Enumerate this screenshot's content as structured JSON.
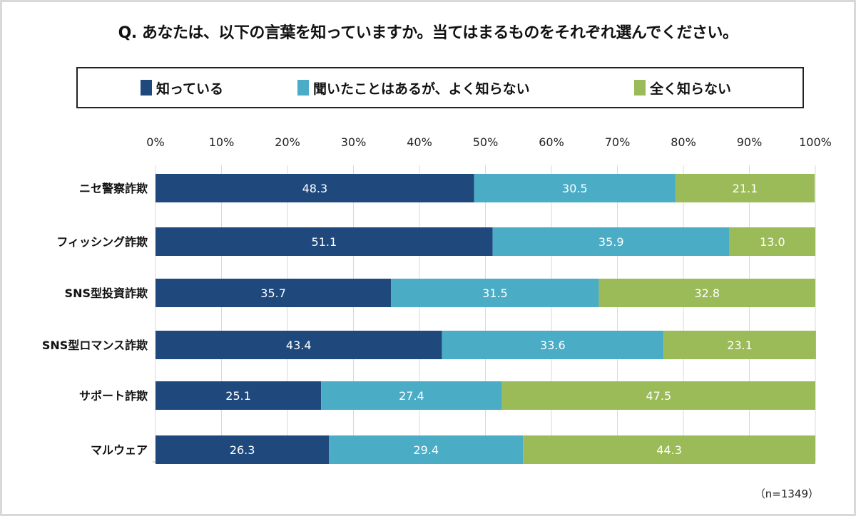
{
  "chart_data": {
    "type": "bar",
    "orientation": "horizontal",
    "stacked": true,
    "title": "Q. あなたは、以下の言葉を知っていますか。当てはまるものをそれぞれ選んでください。",
    "categories": [
      "ニセ警察詐欺",
      "フィッシング詐欺",
      "SNS型投資詐欺",
      "SNS型ロマンス詐欺",
      "サポート詐欺",
      "マルウェア"
    ],
    "series": [
      {
        "name": "知っている",
        "color": "#1f497d",
        "values": [
          48.3,
          51.1,
          35.7,
          43.4,
          25.1,
          26.3
        ]
      },
      {
        "name": "聞いたことはあるが、よく知らない",
        "color": "#4bacc6",
        "values": [
          30.5,
          35.9,
          31.5,
          33.6,
          27.4,
          29.4
        ]
      },
      {
        "name": "全く知らない",
        "color": "#9bbb59",
        "values": [
          21.1,
          13.0,
          32.8,
          23.1,
          47.5,
          44.3
        ]
      }
    ],
    "xlim": [
      0,
      100
    ],
    "x_ticks": [
      "0%",
      "10%",
      "20%",
      "30%",
      "40%",
      "50%",
      "60%",
      "70%",
      "80%",
      "90%",
      "100%"
    ],
    "grid": true,
    "legend_position": "top",
    "note": "（n=1349）"
  }
}
